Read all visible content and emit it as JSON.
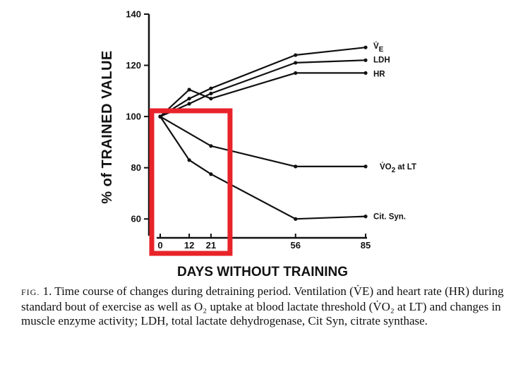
{
  "chart_data": {
    "type": "line",
    "xlabel": "DAYS WITHOUT TRAINING",
    "ylabel": "% of TRAINED VALUE",
    "x_ticks": [
      "0",
      "12",
      "21",
      "56",
      "85"
    ],
    "y_ticks": [
      "60",
      "80",
      "100",
      "120",
      "140"
    ],
    "xlim": [
      0,
      85
    ],
    "ylim": [
      54,
      140
    ],
    "series": [
      {
        "name": "V̇E",
        "label_main": "V̇",
        "label_sub": "E",
        "x": [
          0,
          12,
          21,
          56,
          85
        ],
        "y": [
          100,
          107,
          111,
          124,
          127
        ]
      },
      {
        "name": "LDH",
        "label_main": "LDH",
        "label_sub": "",
        "x": [
          0,
          12,
          21,
          56,
          85
        ],
        "y": [
          100,
          105,
          109,
          121,
          122
        ]
      },
      {
        "name": "HR",
        "label_main": "HR",
        "label_sub": "",
        "x": [
          0,
          12,
          21,
          56,
          85
        ],
        "y": [
          100,
          110.5,
          107,
          117,
          117
        ]
      },
      {
        "name": "V̇O2 at LT",
        "label_main": "V̇O",
        "label_sub": "2",
        "label_rest": " at LT",
        "x": [
          0,
          21,
          56,
          85
        ],
        "y": [
          100,
          88.5,
          80.5,
          80.5
        ]
      },
      {
        "name": "Cit. Syn.",
        "label_main": "Cit. Syn.",
        "label_sub": "",
        "x": [
          0,
          12,
          21,
          56,
          85
        ],
        "y": [
          100,
          83,
          77.5,
          60,
          61
        ]
      }
    ],
    "highlight_box": {
      "x_from": 0,
      "x_to": 21,
      "color": "#e8232a"
    }
  },
  "caption": {
    "prefix": "FIG.",
    "text": " 1. Time course of changes during detraining period. Ventilation (V̇E) and heart rate (HR) during standard bout of exercise as well as O₂ uptake at blood lactate threshold (V̇O₂ at LT) and changes in muscle enzyme activity; LDH, total lactate dehydrogenase, Cit Syn, citrate synthase."
  },
  "colors": {
    "ink": "#111111",
    "highlight": "#e8232a",
    "background": "#ffffff"
  }
}
